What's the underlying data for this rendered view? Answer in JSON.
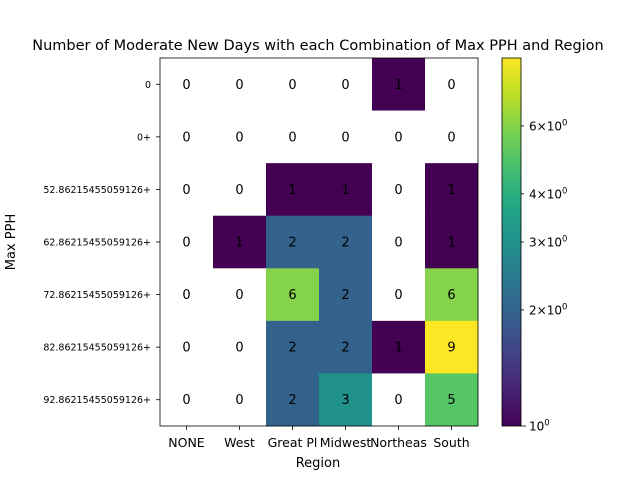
{
  "chart_data": {
    "type": "heatmap",
    "title": "Number of Moderate New Days with each Combination of Max PPH and Region",
    "xlabel": "Region",
    "ylabel": "Max PPH",
    "x_categories": [
      "NONE",
      "West",
      "Great Pl",
      "Midwest",
      "Northeas",
      "South"
    ],
    "y_categories": [
      "0",
      "0+",
      "52.86215455059126+",
      "62.86215455059126+",
      "72.86215455059126+",
      "82.86215455059126+",
      "92.86215455059126+"
    ],
    "values": [
      [
        0,
        0,
        0,
        0,
        1,
        0
      ],
      [
        0,
        0,
        0,
        0,
        0,
        0
      ],
      [
        0,
        0,
        1,
        1,
        0,
        1
      ],
      [
        0,
        1,
        2,
        2,
        0,
        1
      ],
      [
        0,
        0,
        6,
        2,
        0,
        6
      ],
      [
        0,
        0,
        2,
        2,
        1,
        9
      ],
      [
        0,
        0,
        2,
        3,
        0,
        5
      ]
    ],
    "colormap": "viridis",
    "color_scale": "log",
    "color_range": [
      1,
      9
    ],
    "zero_cells_color": "#ffffff",
    "colorbar_ticks": [
      {
        "value": 1,
        "base": "10",
        "exp": "0"
      },
      {
        "value": 2,
        "base": "2×10",
        "exp": "0"
      },
      {
        "value": 3,
        "base": "3×10",
        "exp": "0"
      },
      {
        "value": 4,
        "base": "4×10",
        "exp": "0"
      },
      {
        "value": 6,
        "base": "6×10",
        "exp": "0"
      }
    ]
  }
}
